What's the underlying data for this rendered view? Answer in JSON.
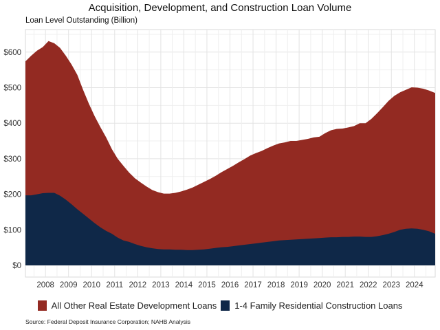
{
  "title": "Acquisition, Development, and Construction Loan Volume",
  "subtitle": "Loan Level Outstanding (Billion)",
  "source": "Source: Federal Deposit Insurance Corporation; NAHB Analysis",
  "legend": [
    {
      "label": "All Other Real Estate Development Loans",
      "color": "#932a22"
    },
    {
      "label": "1-4 Family Residential Construction Loans",
      "color": "#0f2848"
    }
  ],
  "chart_data": {
    "type": "area",
    "stacked": true,
    "title": "Acquisition, Development, and Construction Loan Volume",
    "ylabel": "Loan Level Outstanding (Billion)",
    "xlabel": "",
    "xlim": [
      2007.13,
      2024.9
    ],
    "ylim": [
      0,
      650
    ],
    "yticks": [
      0,
      100,
      200,
      300,
      400,
      500,
      600
    ],
    "ytick_labels": [
      "$0",
      "$100",
      "$200",
      "$300",
      "$400",
      "$500",
      "$600"
    ],
    "xticks": [
      2008,
      2009,
      2010,
      2011,
      2012,
      2013,
      2014,
      2015,
      2016,
      2017,
      2018,
      2019,
      2020,
      2021,
      2022,
      2023,
      2024
    ],
    "xtick_labels": [
      "2008",
      "2009",
      "2010",
      "2011",
      "2012",
      "2013",
      "2014",
      "2015",
      "2016",
      "2017",
      "2018",
      "2019",
      "2020",
      "2021",
      "2022",
      "2023",
      "2024"
    ],
    "grid": true,
    "legend_position": "bottom",
    "x": [
      2007.13,
      2007.38,
      2007.63,
      2007.88,
      2008.13,
      2008.38,
      2008.63,
      2008.88,
      2009.13,
      2009.38,
      2009.63,
      2009.88,
      2010.13,
      2010.38,
      2010.63,
      2010.88,
      2011.13,
      2011.38,
      2011.63,
      2011.88,
      2012.13,
      2012.38,
      2012.63,
      2012.88,
      2013.13,
      2013.38,
      2013.63,
      2013.88,
      2014.13,
      2014.38,
      2014.63,
      2014.88,
      2015.13,
      2015.38,
      2015.63,
      2015.88,
      2016.13,
      2016.38,
      2016.63,
      2016.88,
      2017.13,
      2017.38,
      2017.63,
      2017.88,
      2018.13,
      2018.38,
      2018.63,
      2018.88,
      2019.13,
      2019.38,
      2019.63,
      2019.88,
      2020.13,
      2020.38,
      2020.63,
      2020.88,
      2021.13,
      2021.38,
      2021.63,
      2021.88,
      2022.13,
      2022.38,
      2022.63,
      2022.88,
      2023.13,
      2023.38,
      2023.63,
      2023.88,
      2024.13,
      2024.38,
      2024.63,
      2024.9
    ],
    "series": [
      {
        "name": "1-4 Family Residential Construction Loans",
        "color": "#0f2848",
        "values": [
          197,
          197,
          200,
          203,
          204,
          204,
          196,
          185,
          172,
          158,
          145,
          132,
          119,
          107,
          97,
          89,
          78,
          70,
          66,
          60,
          55,
          51,
          48,
          46,
          45,
          45,
          44,
          44,
          43,
          43,
          44,
          45,
          47,
          49,
          51,
          52,
          54,
          56,
          58,
          60,
          62,
          64,
          66,
          68,
          70,
          71,
          72,
          73,
          74,
          75,
          76,
          77,
          78,
          79,
          79,
          80,
          80,
          81,
          81,
          80,
          80,
          82,
          85,
          89,
          94,
          100,
          103,
          104,
          103,
          100,
          96,
          89
        ]
      },
      {
        "name": "All Other Real Estate Development Loans",
        "color": "#932a22",
        "total_values": [
          574,
          590,
          604,
          614,
          631,
          625,
          612,
          590,
          565,
          536,
          494,
          455,
          420,
          389,
          360,
          327,
          300,
          280,
          261,
          245,
          233,
          222,
          212,
          206,
          202,
          202,
          204,
          208,
          213,
          219,
          227,
          235,
          243,
          252,
          262,
          271,
          280,
          290,
          299,
          309,
          316,
          322,
          330,
          337,
          343,
          346,
          350,
          350,
          353,
          356,
          360,
          362,
          372,
          380,
          384,
          385,
          388,
          392,
          400,
          400,
          412,
          428,
          445,
          463,
          477,
          487,
          494,
          501,
          500,
          497,
          492,
          485
        ]
      }
    ]
  }
}
